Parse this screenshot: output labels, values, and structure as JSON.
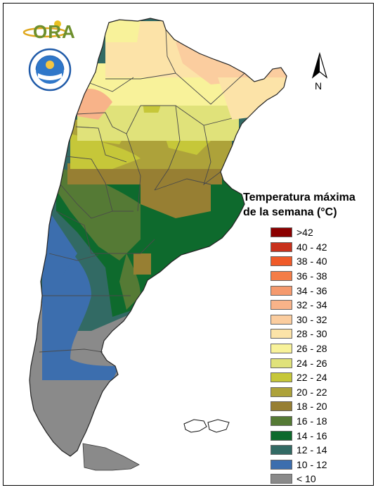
{
  "logos": {
    "ora_text": "ORA",
    "seal_text": "SERVICIO METEOROLOGICO NACIONAL · ARGENTINA"
  },
  "north_arrow": {
    "label": "N"
  },
  "legend": {
    "title_line1": "Temperatura máxima",
    "title_line2": "de la semana (°C)",
    "items": [
      {
        "label": ">42",
        "color": "#8b0000"
      },
      {
        "label": "40 - 42",
        "color": "#c8311c"
      },
      {
        "label": "38 - 40",
        "color": "#f05a28"
      },
      {
        "label": "36 - 38",
        "color": "#f47d47"
      },
      {
        "label": "34 - 36",
        "color": "#f59a6e"
      },
      {
        "label": "32 - 34",
        "color": "#f8b389"
      },
      {
        "label": "30 - 32",
        "color": "#fbcd9f"
      },
      {
        "label": "28 - 30",
        "color": "#fce3a8"
      },
      {
        "label": "26 - 28",
        "color": "#f8f29a"
      },
      {
        "label": "24 - 26",
        "color": "#e0e27a"
      },
      {
        "label": "22 - 24",
        "color": "#c6c739"
      },
      {
        "label": "20 - 22",
        "color": "#ada23a"
      },
      {
        "label": "18 - 20",
        "color": "#977f33"
      },
      {
        "label": "16 - 18",
        "color": "#557a35"
      },
      {
        "label": "14 - 16",
        "color": "#0e6a2d"
      },
      {
        "label": "12 - 14",
        "color": "#326a64"
      },
      {
        "label": "10 - 12",
        "color": "#3c6eae"
      },
      {
        "label": "< 10",
        "color": "#8a8a8a"
      }
    ]
  }
}
